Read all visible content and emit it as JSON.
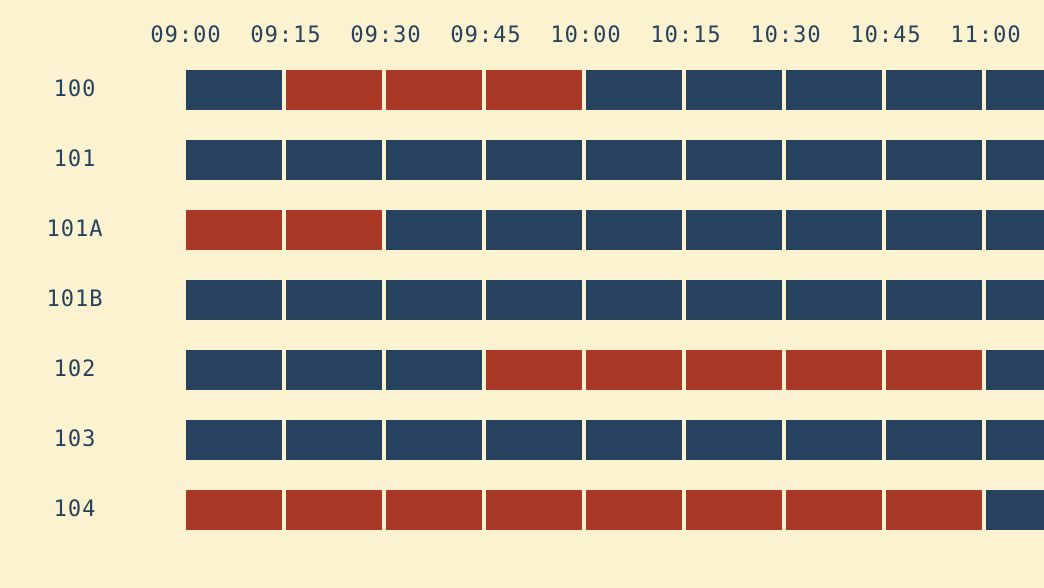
{
  "colors": {
    "background": "#fbf2d0",
    "text": "#27425e",
    "available": "#27425e",
    "booked": "#a93826"
  },
  "times": [
    "09:00",
    "09:15",
    "09:30",
    "09:45",
    "10:00",
    "10:15",
    "10:30",
    "10:45",
    "11:00"
  ],
  "rooms": [
    {
      "name": "100",
      "slots": [
        "available",
        "booked",
        "booked",
        "booked",
        "available",
        "available",
        "available",
        "available",
        "available"
      ]
    },
    {
      "name": "101",
      "slots": [
        "available",
        "available",
        "available",
        "available",
        "available",
        "available",
        "available",
        "available",
        "available"
      ]
    },
    {
      "name": "101A",
      "slots": [
        "booked",
        "booked",
        "available",
        "available",
        "available",
        "available",
        "available",
        "available",
        "available"
      ]
    },
    {
      "name": "101B",
      "slots": [
        "available",
        "available",
        "available",
        "available",
        "available",
        "available",
        "available",
        "available",
        "available"
      ]
    },
    {
      "name": "102",
      "slots": [
        "available",
        "available",
        "available",
        "booked",
        "booked",
        "booked",
        "booked",
        "booked",
        "available"
      ]
    },
    {
      "name": "103",
      "slots": [
        "available",
        "available",
        "available",
        "available",
        "available",
        "available",
        "available",
        "available",
        "available"
      ]
    },
    {
      "name": "104",
      "slots": [
        "booked",
        "booked",
        "booked",
        "booked",
        "booked",
        "booked",
        "booked",
        "booked",
        "available"
      ]
    }
  ]
}
